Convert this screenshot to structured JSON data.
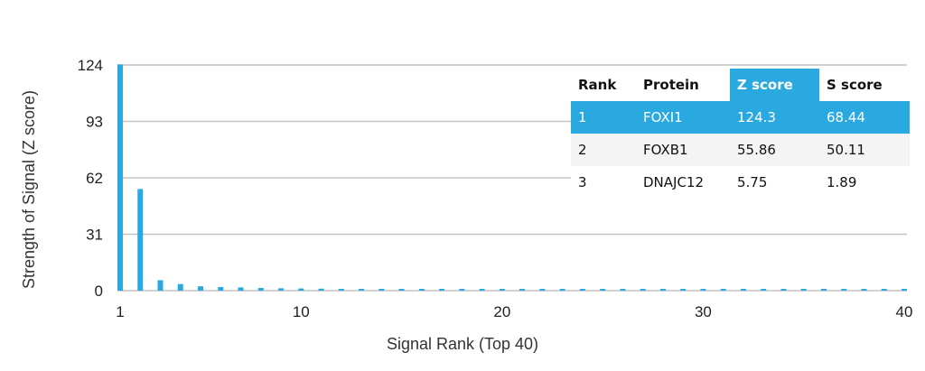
{
  "chart_data": {
    "type": "bar",
    "xlabel": "Signal Rank (Top 40)",
    "ylabel": "Strength of Signal (Z score)",
    "xlim": [
      1,
      40
    ],
    "ylim": [
      0,
      124
    ],
    "xticks": [
      "1",
      "10",
      "20",
      "30",
      "40"
    ],
    "yticks": [
      "124",
      "93",
      "62",
      "31",
      "0"
    ],
    "grid": true,
    "bar_color": "#29a9e0",
    "x": [
      1,
      2,
      3,
      4,
      5,
      6,
      7,
      8,
      9,
      10,
      11,
      12,
      13,
      14,
      15,
      16,
      17,
      18,
      19,
      20,
      21,
      22,
      23,
      24,
      25,
      26,
      27,
      28,
      29,
      30,
      31,
      32,
      33,
      34,
      35,
      36,
      37,
      38,
      39,
      40
    ],
    "values": [
      124.3,
      55.86,
      5.75,
      3.6,
      2.4,
      2.0,
      1.8,
      1.5,
      1.3,
      1.2,
      1.1,
      1.0,
      1.0,
      1.0,
      1.0,
      1.0,
      1.0,
      1.0,
      1.0,
      1.0,
      1.0,
      1.0,
      1.0,
      1.0,
      1.0,
      1.0,
      1.0,
      1.0,
      1.0,
      1.0,
      1.0,
      1.0,
      1.0,
      1.0,
      1.0,
      1.0,
      1.0,
      1.0,
      1.0,
      1.0
    ]
  },
  "table": {
    "headers": [
      "Rank",
      "Protein",
      "Z score",
      "S score"
    ],
    "highlight_color": "#29a9e0",
    "rows": [
      [
        "1",
        "FOXI1",
        "124.3",
        "68.44"
      ],
      [
        "2",
        "FOXB1",
        "55.86",
        "50.11"
      ],
      [
        "3",
        "DNAJC12",
        "5.75",
        "1.89"
      ]
    ]
  }
}
